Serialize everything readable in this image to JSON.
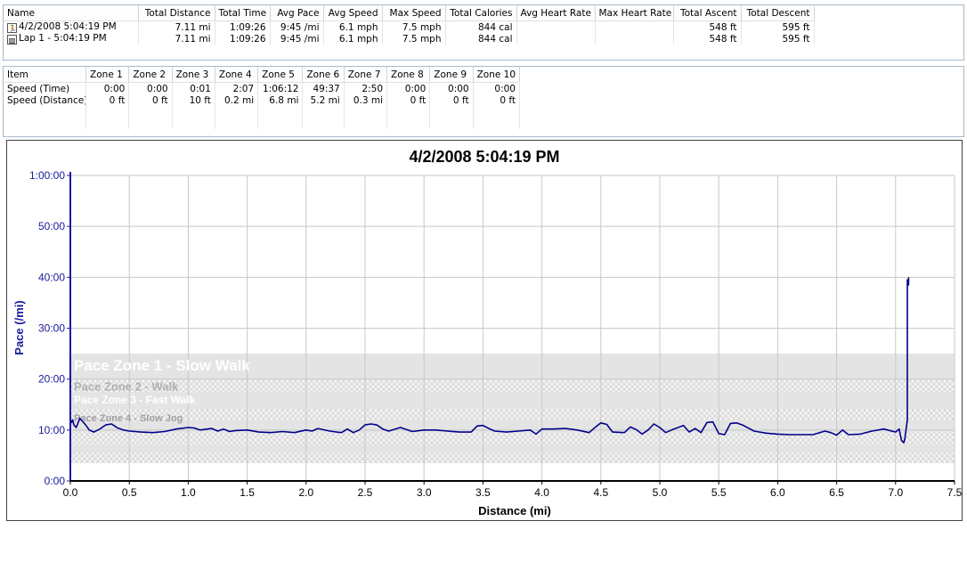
{
  "activities": {
    "columns": [
      "Name",
      "Total Distance",
      "Total Time",
      "Avg Pace",
      "Avg Speed",
      "Max Speed",
      "Total Calories",
      "Avg Heart Rate",
      "Max Heart Rate",
      "Total Ascent",
      "Total Descent"
    ],
    "rows": [
      {
        "icon": "run-activity-icon",
        "cells": [
          "4/2/2008 5:04:19 PM",
          "7.11 mi",
          "1:09:26",
          "9:45 /mi",
          "6.1 mph",
          "7.5 mph",
          "844 cal",
          "",
          "",
          "548 ft",
          "595 ft"
        ]
      },
      {
        "icon": "lap-icon",
        "cells": [
          "Lap 1 - 5:04:19 PM",
          "7.11 mi",
          "1:09:26",
          "9:45 /mi",
          "6.1 mph",
          "7.5 mph",
          "844 cal",
          "",
          "",
          "548 ft",
          "595 ft"
        ]
      }
    ]
  },
  "zones": {
    "columns": [
      "Item",
      "Zone 1",
      "Zone 2",
      "Zone 3",
      "Zone 4",
      "Zone 5",
      "Zone 6",
      "Zone 7",
      "Zone 8",
      "Zone 9",
      "Zone 10"
    ],
    "rows": [
      [
        "Speed (Time)",
        "0:00",
        "0:00",
        "0:01",
        "2:07",
        "1:06:12",
        "49:37",
        "2:50",
        "0:00",
        "0:00",
        "0:00"
      ],
      [
        "Speed (Distance)",
        "0 ft",
        "0 ft",
        "10 ft",
        "0.2 mi",
        "6.8 mi",
        "5.2 mi",
        "0.3 mi",
        "0 ft",
        "0 ft",
        "0 ft"
      ]
    ]
  },
  "chart_data": {
    "type": "line",
    "title": "4/2/2008 5:04:19 PM",
    "xlabel": "Distance (mi)",
    "ylabel": "Pace (/mi)",
    "xlim": [
      0,
      7.5
    ],
    "ylim": [
      0,
      60
    ],
    "x_ticks": [
      0.0,
      0.5,
      1.0,
      1.5,
      2.0,
      2.5,
      3.0,
      3.5,
      4.0,
      4.5,
      5.0,
      5.5,
      6.0,
      6.5,
      7.0,
      7.5
    ],
    "x_tick_labels": [
      "0.0",
      "0.5",
      "1.0",
      "1.5",
      "2.0",
      "2.5",
      "3.0",
      "3.5",
      "4.0",
      "4.5",
      "5.0",
      "5.5",
      "6.0",
      "6.5",
      "7.0",
      "7.5"
    ],
    "y_ticks": [
      0,
      10,
      20,
      30,
      40,
      50,
      60
    ],
    "y_tick_labels": [
      "0:00",
      "10:00",
      "20:00",
      "30:00",
      "40:00",
      "50:00",
      "1:00:00"
    ],
    "grid": true,
    "line_color": "#00008b",
    "zones": [
      {
        "name": "Pace Zone 1 - Slow Walk",
        "from": 20,
        "to": 25,
        "style": "solid"
      },
      {
        "name": "Pace Zone 2 - Walk",
        "from": 17.5,
        "to": 20,
        "style": "hatch"
      },
      {
        "name": "Pace Zone 3 - Fast Walk",
        "from": 14,
        "to": 17.5,
        "style": "solid"
      },
      {
        "name": "Pace Zone 4 - Slow Jog",
        "from": 12,
        "to": 14,
        "style": "hatch"
      },
      {
        "name": "",
        "from": 9.5,
        "to": 12,
        "style": "solid"
      },
      {
        "name": "",
        "from": 7,
        "to": 9.5,
        "style": "hatch"
      },
      {
        "name": "",
        "from": 5.5,
        "to": 7,
        "style": "solid"
      },
      {
        "name": "",
        "from": 3.5,
        "to": 5.5,
        "style": "hatch"
      }
    ],
    "series": [
      {
        "x": [
          0,
          0.01,
          0.02,
          0.03,
          0.05,
          0.08,
          0.1,
          0.13,
          0.16,
          0.2,
          0.25,
          0.3,
          0.35,
          0.4,
          0.45,
          0.5,
          0.6,
          0.7,
          0.8,
          0.9,
          1.0,
          1.05,
          1.1,
          1.2,
          1.25,
          1.3,
          1.35,
          1.4,
          1.5,
          1.6,
          1.7,
          1.8,
          1.9,
          2.0,
          2.05,
          2.1,
          2.2,
          2.3,
          2.35,
          2.4,
          2.45,
          2.5,
          2.55,
          2.6,
          2.65,
          2.7,
          2.8,
          2.9,
          3.0,
          3.1,
          3.2,
          3.3,
          3.4,
          3.45,
          3.5,
          3.55,
          3.6,
          3.7,
          3.8,
          3.9,
          3.95,
          4.0,
          4.1,
          4.2,
          4.3,
          4.4,
          4.45,
          4.5,
          4.55,
          4.6,
          4.7,
          4.75,
          4.8,
          4.85,
          4.9,
          4.95,
          5.0,
          5.05,
          5.1,
          5.2,
          5.25,
          5.3,
          5.35,
          5.4,
          5.45,
          5.5,
          5.55,
          5.6,
          5.65,
          5.7,
          5.8,
          5.9,
          6.0,
          6.1,
          6.2,
          6.3,
          6.4,
          6.45,
          6.5,
          6.55,
          6.6,
          6.7,
          6.8,
          6.9,
          7.0,
          7.03,
          7.05,
          7.07,
          7.08,
          7.1,
          7.1,
          7.11,
          7.11
        ],
        "y": [
          12,
          11.5,
          12,
          11,
          10.5,
          12.3,
          11.8,
          11,
          10,
          9.6,
          10.2,
          11,
          11.2,
          10.4,
          10,
          9.8,
          9.6,
          9.5,
          9.7,
          10.2,
          10.5,
          10.4,
          10,
          10.3,
          9.8,
          10.2,
          9.7,
          9.9,
          10,
          9.6,
          9.5,
          9.7,
          9.5,
          10,
          9.8,
          10.3,
          9.8,
          9.5,
          10.2,
          9.5,
          10,
          11,
          11.2,
          11,
          10.2,
          9.8,
          10.5,
          9.7,
          10,
          10,
          9.8,
          9.6,
          9.6,
          10.8,
          10.9,
          10.3,
          9.8,
          9.6,
          9.8,
          10,
          9.2,
          10.2,
          10.2,
          10.3,
          10,
          9.5,
          10.5,
          11.4,
          11.1,
          9.6,
          9.5,
          10.6,
          10.1,
          9.2,
          10,
          11.2,
          10.5,
          9.5,
          10,
          10.9,
          9.6,
          10.3,
          9.5,
          11.5,
          11.6,
          9.3,
          9.1,
          11.3,
          11.4,
          11,
          9.8,
          9.4,
          9.2,
          9.1,
          9.1,
          9.1,
          9.8,
          9.5,
          9,
          10,
          9.1,
          9.2,
          9.8,
          10.2,
          9.6,
          10.2,
          8,
          7.5,
          8.5,
          12,
          39.5,
          38.5,
          40
        ]
      }
    ]
  }
}
